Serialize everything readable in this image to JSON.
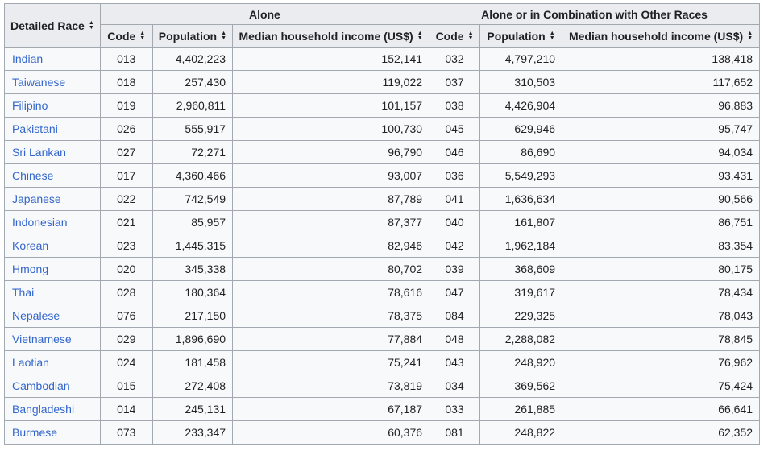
{
  "colors": {
    "link": "#3366cc",
    "header_bg": "#eaecf0",
    "row_bg": "#f8f9fa",
    "border": "#a2a9b1",
    "text": "#202122",
    "page_bg": "#ffffff"
  },
  "icons": {
    "sort_up": "▲",
    "sort_down": "▼"
  },
  "table": {
    "race_header": "Detailed Race",
    "groups": {
      "alone": "Alone",
      "combo": "Alone or in Combination with Other Races"
    },
    "columns": {
      "code": "Code",
      "population": "Population",
      "income": "Median household income (US$)"
    },
    "rows": [
      {
        "race": "Indian",
        "alone": {
          "code": "013",
          "population": "4,402,223",
          "income": "152,141"
        },
        "combo": {
          "code": "032",
          "population": "4,797,210",
          "income": "138,418"
        }
      },
      {
        "race": "Taiwanese",
        "alone": {
          "code": "018",
          "population": "257,430",
          "income": "119,022"
        },
        "combo": {
          "code": "037",
          "population": "310,503",
          "income": "117,652"
        }
      },
      {
        "race": "Filipino",
        "alone": {
          "code": "019",
          "population": "2,960,811",
          "income": "101,157"
        },
        "combo": {
          "code": "038",
          "population": "4,426,904",
          "income": "96,883"
        }
      },
      {
        "race": "Pakistani",
        "alone": {
          "code": "026",
          "population": "555,917",
          "income": "100,730"
        },
        "combo": {
          "code": "045",
          "population": "629,946",
          "income": "95,747"
        }
      },
      {
        "race": "Sri Lankan",
        "alone": {
          "code": "027",
          "population": "72,271",
          "income": "96,790"
        },
        "combo": {
          "code": "046",
          "population": "86,690",
          "income": "94,034"
        }
      },
      {
        "race": "Chinese",
        "alone": {
          "code": "017",
          "population": "4,360,466",
          "income": "93,007"
        },
        "combo": {
          "code": "036",
          "population": "5,549,293",
          "income": "93,431"
        }
      },
      {
        "race": "Japanese",
        "alone": {
          "code": "022",
          "population": "742,549",
          "income": "87,789"
        },
        "combo": {
          "code": "041",
          "population": "1,636,634",
          "income": "90,566"
        }
      },
      {
        "race": "Indonesian",
        "alone": {
          "code": "021",
          "population": "85,957",
          "income": "87,377"
        },
        "combo": {
          "code": "040",
          "population": "161,807",
          "income": "86,751"
        }
      },
      {
        "race": "Korean",
        "alone": {
          "code": "023",
          "population": "1,445,315",
          "income": "82,946"
        },
        "combo": {
          "code": "042",
          "population": "1,962,184",
          "income": "83,354"
        }
      },
      {
        "race": "Hmong",
        "alone": {
          "code": "020",
          "population": "345,338",
          "income": "80,702"
        },
        "combo": {
          "code": "039",
          "population": "368,609",
          "income": "80,175"
        }
      },
      {
        "race": "Thai",
        "alone": {
          "code": "028",
          "population": "180,364",
          "income": "78,616"
        },
        "combo": {
          "code": "047",
          "population": "319,617",
          "income": "78,434"
        }
      },
      {
        "race": "Nepalese",
        "alone": {
          "code": "076",
          "population": "217,150",
          "income": "78,375"
        },
        "combo": {
          "code": "084",
          "population": "229,325",
          "income": "78,043"
        }
      },
      {
        "race": "Vietnamese",
        "alone": {
          "code": "029",
          "population": "1,896,690",
          "income": "77,884"
        },
        "combo": {
          "code": "048",
          "population": "2,288,082",
          "income": "78,845"
        }
      },
      {
        "race": "Laotian",
        "alone": {
          "code": "024",
          "population": "181,458",
          "income": "75,241"
        },
        "combo": {
          "code": "043",
          "population": "248,920",
          "income": "76,962"
        }
      },
      {
        "race": "Cambodian",
        "alone": {
          "code": "015",
          "population": "272,408",
          "income": "73,819"
        },
        "combo": {
          "code": "034",
          "population": "369,562",
          "income": "75,424"
        }
      },
      {
        "race": "Bangladeshi",
        "alone": {
          "code": "014",
          "population": "245,131",
          "income": "67,187"
        },
        "combo": {
          "code": "033",
          "population": "261,885",
          "income": "66,641"
        }
      },
      {
        "race": "Burmese",
        "alone": {
          "code": "073",
          "population": "233,347",
          "income": "60,376"
        },
        "combo": {
          "code": "081",
          "population": "248,822",
          "income": "62,352"
        }
      }
    ]
  }
}
